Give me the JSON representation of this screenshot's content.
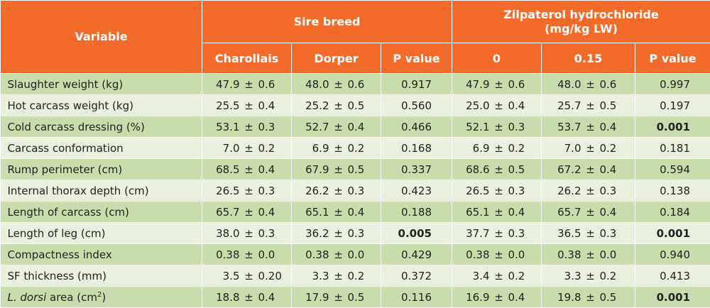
{
  "header": {
    "variable": "Variable",
    "group1": "Sire breed",
    "group2_line1": "Zilpaterol hydrochloride",
    "group2_line2": "(mg/kg LW)",
    "cols": [
      "Charollais",
      "Dorper",
      "P value",
      "0",
      "0.15",
      "P value"
    ]
  },
  "pm_symbol": "±",
  "rows": [
    {
      "label": "Slaughter weight (kg)",
      "cells": [
        [
          "47.9",
          "0.6"
        ],
        [
          "48.0",
          "0.6"
        ],
        "0.917",
        [
          "47.9",
          "0.6"
        ],
        [
          "48.0",
          "0.6"
        ],
        "0.997"
      ]
    },
    {
      "label": "Hot carcass weight (kg)",
      "cells": [
        [
          "25.5",
          "0.4"
        ],
        [
          "25.2",
          "0.5"
        ],
        "0.560",
        [
          "25.0",
          "0.4"
        ],
        [
          "25.7",
          "0.5"
        ],
        "0.197"
      ]
    },
    {
      "label": "Cold carcass dressing (%)",
      "cells": [
        [
          "53.1",
          "0.3"
        ],
        [
          "52.7",
          "0.4"
        ],
        "0.466",
        [
          "52.1",
          "0.3"
        ],
        [
          "53.7",
          "0.4"
        ],
        "0.001"
      ]
    },
    {
      "label": "Carcass conformation",
      "cells": [
        [
          "7.0",
          "0.2"
        ],
        [
          "6.9",
          "0.2"
        ],
        "0.168",
        [
          "6.9",
          "0.2"
        ],
        [
          "7.0",
          "0.2"
        ],
        "0.181"
      ]
    },
    {
      "label": "Rump perimeter (cm)",
      "cells": [
        [
          "68.5",
          "0.4"
        ],
        [
          "67.9",
          "0.5"
        ],
        "0.337",
        [
          "68.6",
          "0.5"
        ],
        [
          "67.2",
          "0.4"
        ],
        "0.594"
      ]
    },
    {
      "label": "Internal thorax depth (cm)",
      "cells": [
        [
          "26.5",
          "0.3"
        ],
        [
          "26.2",
          "0.3"
        ],
        "0.423",
        [
          "26.5",
          "0.3"
        ],
        [
          "26.2",
          "0.3"
        ],
        "0.138"
      ]
    },
    {
      "label": "Length of carcass (cm)",
      "cells": [
        [
          "65.7",
          "0.4"
        ],
        [
          "65.1",
          "0.4"
        ],
        "0.188",
        [
          "65.1",
          "0.4"
        ],
        [
          "65.7",
          "0.4"
        ],
        "0.184"
      ]
    },
    {
      "label": "Length of leg (cm)",
      "cells": [
        [
          "38.0",
          "0.3"
        ],
        [
          "36.2",
          "0.3"
        ],
        "0.005",
        [
          "37.7",
          "0.3"
        ],
        [
          "36.5",
          "0.3"
        ],
        "0.001"
      ]
    },
    {
      "label": "Compactness index",
      "cells": [
        [
          "0.38",
          "0.0"
        ],
        [
          "0.38",
          "0.0"
        ],
        "0.429",
        [
          "0.38",
          "0.0"
        ],
        [
          "0.38",
          "0.0"
        ],
        "0.940"
      ]
    },
    {
      "label": "SF thickness (mm)",
      "cells": [
        [
          "3.5",
          "0.20"
        ],
        [
          "3.3",
          "0.2"
        ],
        "0.372",
        [
          "3.4",
          "0.2"
        ],
        [
          "3.3",
          "0.2"
        ],
        "0.413"
      ]
    },
    {
      "label_italic": "L. dorsi",
      "label_rest": " area (cm",
      "label_sup": "2",
      "label_close": ")",
      "cells": [
        [
          "18.8",
          "0.4"
        ],
        [
          "17.9",
          "0.5"
        ],
        "0.116",
        [
          "16.9",
          "0.4"
        ],
        [
          "19.8",
          "0.5"
        ],
        "0.001"
      ]
    }
  ],
  "significant": [
    [
      2,
      5
    ],
    [
      7,
      2
    ],
    [
      7,
      5
    ],
    [
      10,
      5
    ]
  ]
}
